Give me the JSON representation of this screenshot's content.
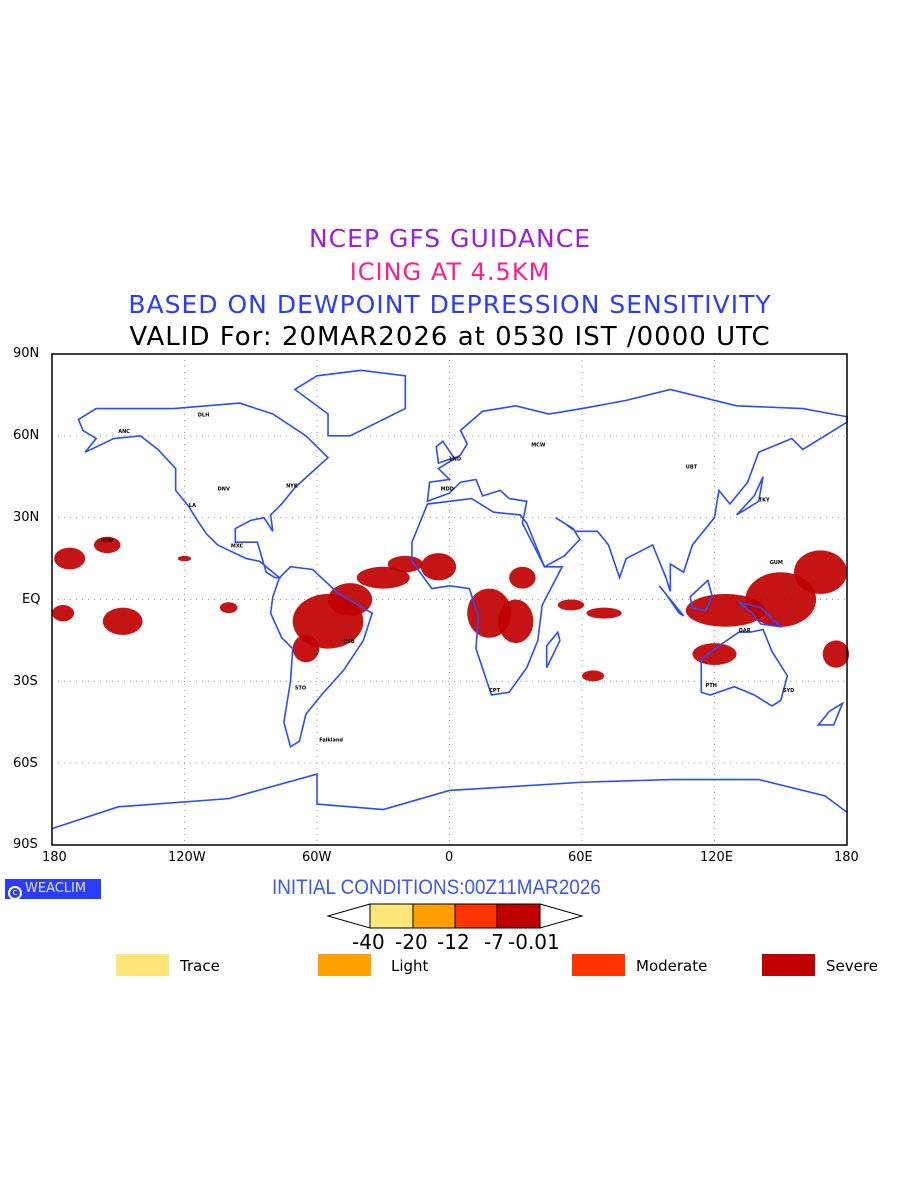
{
  "titles": {
    "line1": "NCEP GFS GUIDANCE",
    "line2": "ICING AT 4.5KM",
    "line3": "BASED ON DEWPOINT DEPRESSION SENSITIVITY",
    "line4": "VALID For: 20MAR2026 at 0530 IST /0000 UTC"
  },
  "axes": {
    "lat_ticks": [
      "90N",
      "60N",
      "30N",
      "EQ",
      "30S",
      "60S",
      "90S"
    ],
    "lon_ticks": [
      "180",
      "120W",
      "60W",
      "0",
      "60E",
      "120E",
      "180"
    ]
  },
  "logo": "WEACLIM",
  "initial_conditions": "INITIAL CONDITIONS:00Z11MAR2026",
  "colorbar": {
    "colors": [
      "#ffe57a",
      "#ffa000",
      "#ff3300",
      "#c00000"
    ],
    "labels": [
      "-40",
      "-20",
      "-12",
      "-7",
      "-0.01"
    ]
  },
  "legend": [
    {
      "label": "Trace",
      "color": "#ffe57a"
    },
    {
      "label": "Light",
      "color": "#ffa000"
    },
    {
      "label": "Moderate",
      "color": "#ff3300"
    },
    {
      "label": "Severe",
      "color": "#c00000"
    }
  ],
  "cities": [
    {
      "name": "ANC",
      "lon": -150,
      "lat": 61
    },
    {
      "name": "DLH",
      "lon": -114,
      "lat": 67
    },
    {
      "name": "HON",
      "lon": -158,
      "lat": 21
    },
    {
      "name": "MXC",
      "lon": -99,
      "lat": 19
    },
    {
      "name": "LA",
      "lon": -118,
      "lat": 34
    },
    {
      "name": "DNV",
      "lon": -105,
      "lat": 40
    },
    {
      "name": "NYK",
      "lon": -74,
      "lat": 41
    },
    {
      "name": "MDD",
      "lon": -4,
      "lat": 40
    },
    {
      "name": "LND",
      "lon": 0,
      "lat": 51
    },
    {
      "name": "MCW",
      "lon": 37,
      "lat": 56
    },
    {
      "name": "UBT",
      "lon": 107,
      "lat": 48
    },
    {
      "name": "TKY",
      "lon": 140,
      "lat": 36
    },
    {
      "name": "GUM",
      "lon": 145,
      "lat": 13
    },
    {
      "name": "DAR",
      "lon": 131,
      "lat": -12
    },
    {
      "name": "PTH",
      "lon": 116,
      "lat": -32
    },
    {
      "name": "SYD",
      "lon": 151,
      "lat": -34
    },
    {
      "name": "CPT",
      "lon": 18,
      "lat": -34
    },
    {
      "name": "BSB",
      "lon": -48,
      "lat": -16
    },
    {
      "name": "STO",
      "lon": -70,
      "lat": -33
    },
    {
      "name": "Falkland",
      "lon": -59,
      "lat": -52
    }
  ]
}
